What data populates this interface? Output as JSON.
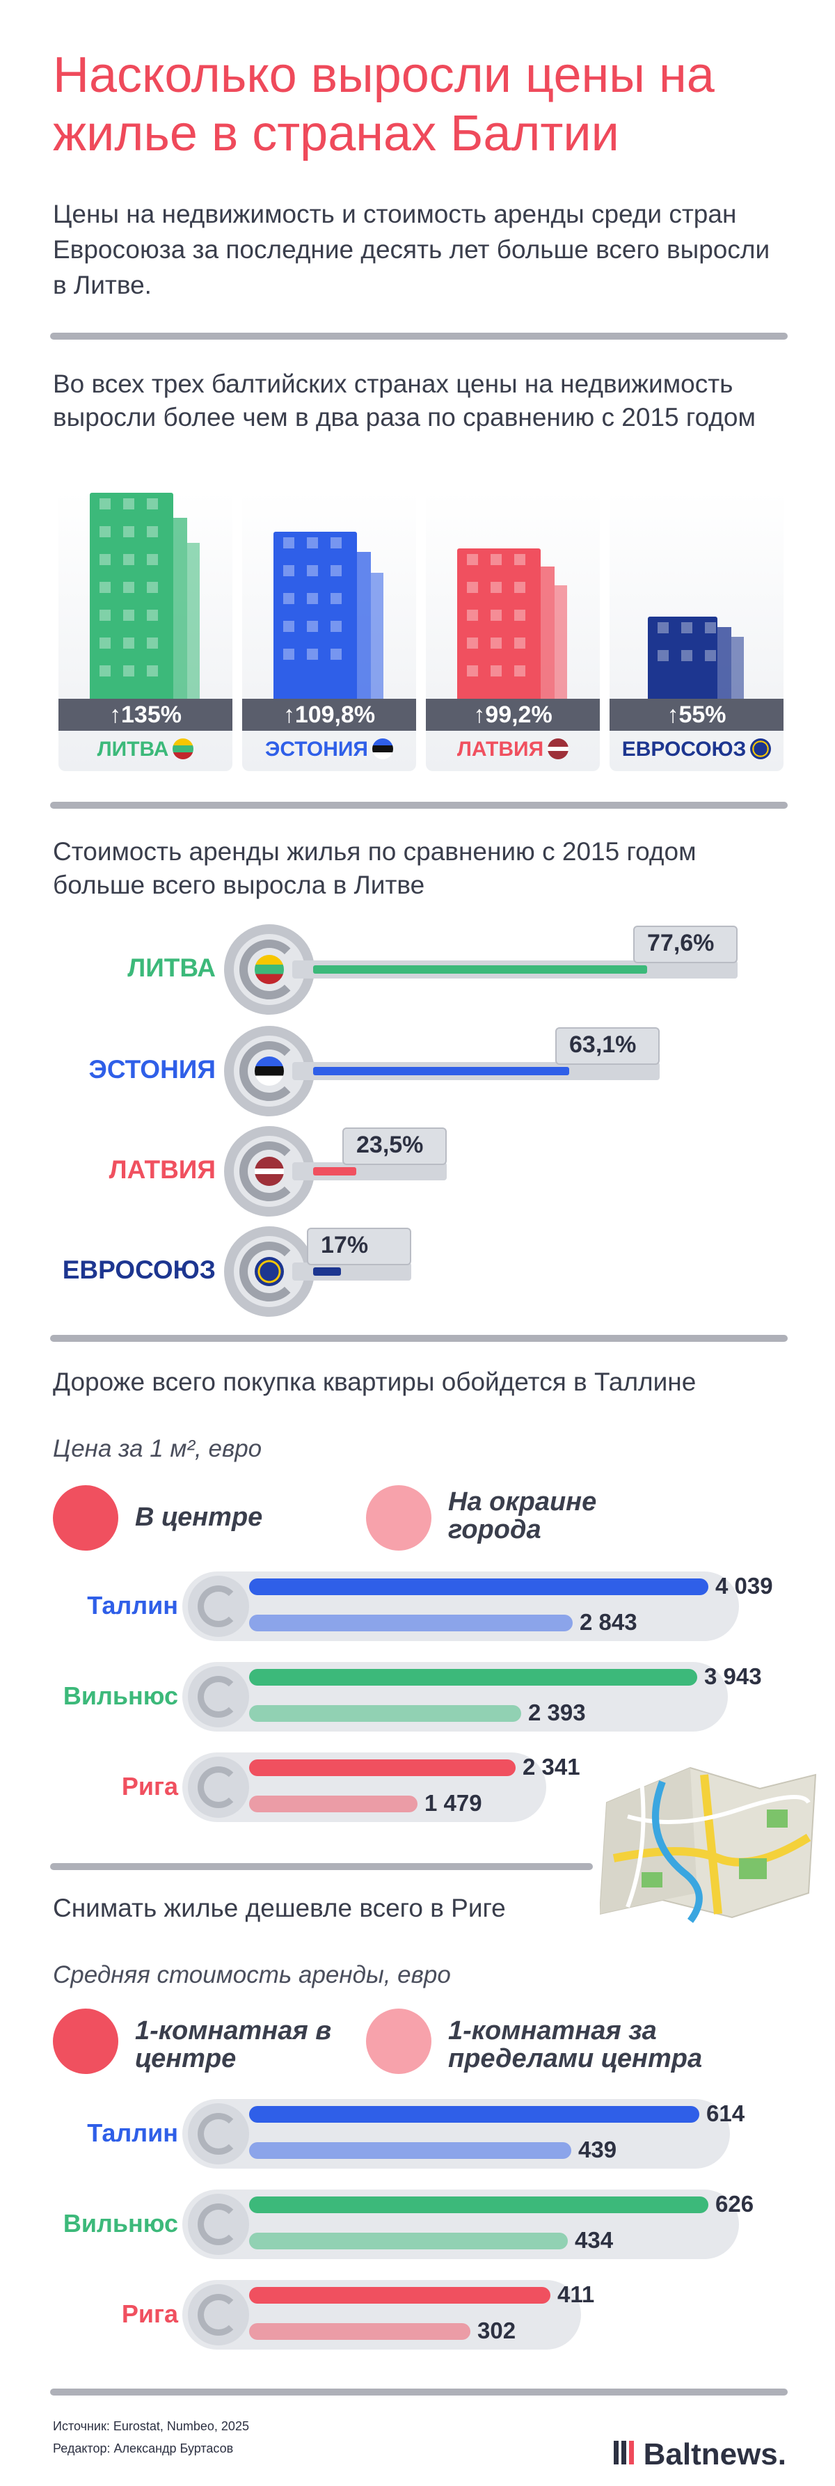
{
  "title": "Насколько выросли цены на жилье в странах Балтии",
  "lead": "Цены на недвижимость и стоимость аренды среди стран Евросоюза за последние десять лет больше всего выросли в Литве.",
  "section_buildings": "Во всех трех балтийских странах цены на недвижимость выросли более чем в два раза по сравнению с 2015 годом",
  "section_rent_growth": "Стоимость аренды жилья по сравнению с 2015 годом больше всего выросла в Литве",
  "section_purchase": "Дороже всего покупка квартиры обойдется в Таллине",
  "purchase_unit": "Цена за 1 м², евро",
  "purchase_legend": {
    "center": "В центре",
    "outskirts": "На окраине города"
  },
  "section_rent": "Снимать жилье дешевле всего в Риге",
  "rent_unit": "Средняя стоимость аренды, евро",
  "rent_legend": {
    "center": "1-комнатная в центре",
    "outside": "1-комнатная за пределами центра"
  },
  "footer": {
    "source": "Источник: Eurostat, Numbeo, 2025",
    "editor": "Редактор: Александр Буртасов"
  },
  "logo": "Baltnews.",
  "colors": {
    "lithuania": "#3cb97a",
    "estonia": "#2f5fe8",
    "latvia": "#f0505f",
    "eu": "#1d3690",
    "accent": "#ef4a5b"
  },
  "chart_data": [
    {
      "type": "bar",
      "categories": [
        "ЛИТВА",
        "ЭСТОНИЯ",
        "ЛАТВИЯ",
        "ЕВРОСОЮЗ"
      ],
      "values": [
        135,
        109.8,
        99.2,
        55
      ],
      "labels": [
        "135%",
        "109,8%",
        "99,2%",
        "55%"
      ]
    },
    {
      "type": "bar",
      "categories": [
        "ЛИТВА",
        "ЭСТОНИЯ",
        "ЛАТВИЯ",
        "ЕВРОСОЮЗ"
      ],
      "values": [
        77.6,
        63.1,
        23.5,
        17
      ],
      "labels": [
        "77,6%",
        "63,1%",
        "23,5%",
        "17%"
      ]
    },
    {
      "type": "bar",
      "categories": [
        "Таллин",
        "Вильнюс",
        "Рига"
      ],
      "series": [
        {
          "name": "В центре",
          "values": [
            4039,
            3943,
            2341
          ],
          "labels": [
            "4 039",
            "3 943",
            "2 341"
          ]
        },
        {
          "name": "На окраине города",
          "values": [
            2843,
            2393,
            1479
          ],
          "labels": [
            "2 843",
            "2 393",
            "1 479"
          ]
        }
      ]
    },
    {
      "type": "bar",
      "categories": [
        "Таллин",
        "Вильнюс",
        "Рига"
      ],
      "series": [
        {
          "name": "1-комнатная в центре",
          "values": [
            614,
            626,
            411
          ],
          "labels": [
            "614",
            "626",
            "411"
          ]
        },
        {
          "name": "1-комнатная за пределами центра",
          "values": [
            439,
            434,
            302
          ],
          "labels": [
            "439",
            "434",
            "302"
          ]
        }
      ]
    }
  ]
}
